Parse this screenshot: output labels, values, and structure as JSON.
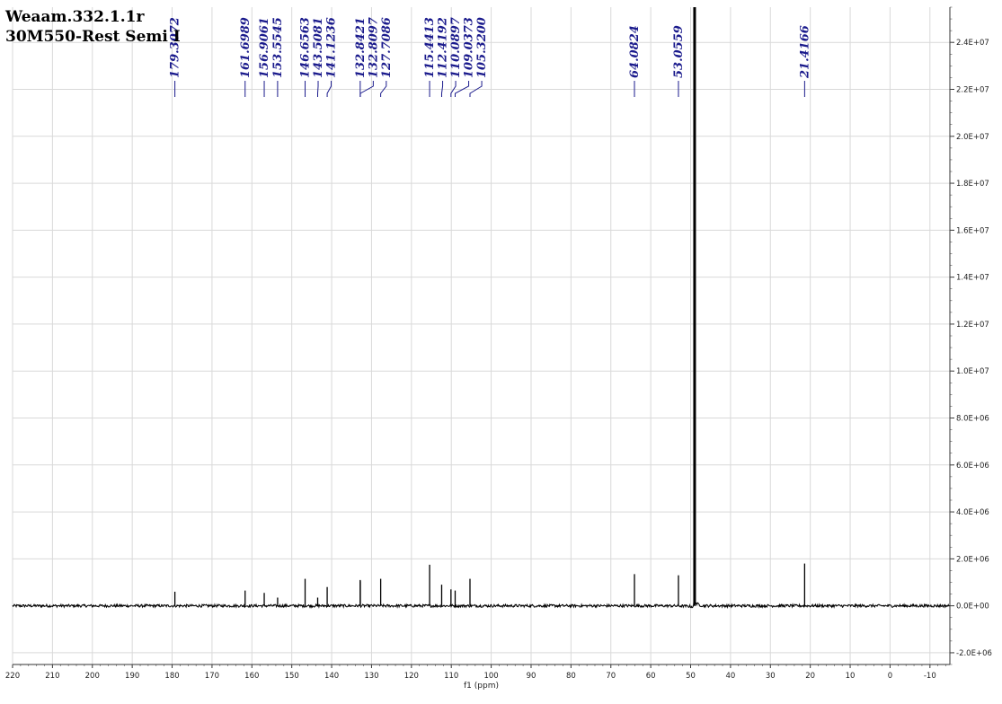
{
  "title_lines": [
    "Weaam.332.1.1r",
    "30M550-Rest Semi I"
  ],
  "chart_data": {
    "type": "line",
    "xlabel": "f1 (ppm)",
    "ylabel": "",
    "xlim": [
      220,
      -15
    ],
    "ylim": [
      -2500000,
      25500000
    ],
    "x_reversed": true,
    "x_ticks": [
      220,
      210,
      200,
      190,
      180,
      170,
      160,
      150,
      140,
      130,
      120,
      110,
      100,
      90,
      80,
      70,
      60,
      50,
      40,
      30,
      20,
      10,
      0,
      -10
    ],
    "x_tick_labels": [
      "220",
      "210",
      "200",
      "190",
      "180",
      "170",
      "160",
      "150",
      "140",
      "130",
      "120",
      "110",
      "100",
      "90",
      "80",
      "70",
      "60",
      "50",
      "40",
      "30",
      "20",
      "10",
      "0",
      "-10"
    ],
    "y_ticks": [
      -2000000,
      0,
      2000000,
      4000000,
      6000000,
      8000000,
      10000000,
      12000000,
      14000000,
      16000000,
      18000000,
      20000000,
      22000000,
      24000000
    ],
    "y_tick_labels": [
      "-2.0E+06",
      "0.0E+00",
      "2.0E+06",
      "4.0E+06",
      "6.0E+06",
      "8.0E+06",
      "1.0E+07",
      "1.2E+07",
      "1.4E+07",
      "1.6E+07",
      "1.8E+07",
      "2.0E+07",
      "2.2E+07",
      "2.4E+07"
    ],
    "grid": true,
    "peaks": [
      {
        "x": 179.3072,
        "y": 600000,
        "label": "179.3072"
      },
      {
        "x": 161.6989,
        "y": 650000,
        "label": "161.6989"
      },
      {
        "x": 156.9061,
        "y": 550000,
        "label": "156.9061"
      },
      {
        "x": 153.5545,
        "y": 350000,
        "label": "153.5545"
      },
      {
        "x": 146.6563,
        "y": 1150000,
        "label": "146.6563"
      },
      {
        "x": 143.5081,
        "y": 350000,
        "label": "143.5081"
      },
      {
        "x": 141.1236,
        "y": 800000,
        "label": "141.1236"
      },
      {
        "x": 132.8421,
        "y": 1100000,
        "label": "132.8421"
      },
      {
        "x": 132.8097,
        "y": 1050000,
        "label": "132.8097"
      },
      {
        "x": 127.7086,
        "y": 1150000,
        "label": "127.7086"
      },
      {
        "x": 115.4413,
        "y": 1750000,
        "label": "115.4413"
      },
      {
        "x": 112.4192,
        "y": 900000,
        "label": "112.4192"
      },
      {
        "x": 110.0897,
        "y": 700000,
        "label": "110.0897"
      },
      {
        "x": 109.0373,
        "y": 650000,
        "label": "109.0373"
      },
      {
        "x": 105.32,
        "y": 1150000,
        "label": "105.3200"
      },
      {
        "x": 64.0824,
        "y": 1350000,
        "label": "64.0824"
      },
      {
        "x": 53.0559,
        "y": 1300000,
        "label": "53.0559"
      },
      {
        "x": 49.0,
        "y": 26000000,
        "label": ""
      },
      {
        "x": 21.4166,
        "y": 1800000,
        "label": "21.4166"
      }
    ],
    "label_xs": [
      179.3072,
      161.6989,
      156.9061,
      153.5545,
      146.6563,
      143.5081,
      141.1236,
      132.8421,
      132.8097,
      127.7086,
      115.4413,
      112.4192,
      110.0897,
      109.0373,
      105.32,
      64.0824,
      53.0559,
      21.4166
    ],
    "colors": {
      "spectrum": "#000000",
      "labels": "#1a1a8c",
      "grid": "#d9d9d9"
    }
  }
}
